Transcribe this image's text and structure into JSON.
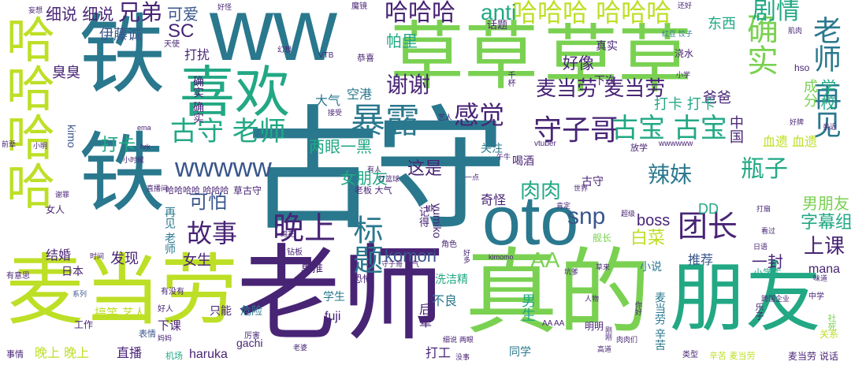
{
  "palette": {
    "dark_purple": "#482475",
    "blue": "#39568c",
    "teal": "#2a788e",
    "green": "#22a884",
    "light_green": "#7ad151",
    "yellow_green": "#bddf26",
    "pale_yellow": "#e8eb6a"
  },
  "words": {
    "gushou": "古守",
    "laoshi_big": "老师",
    "maidanglao": "麦当劳",
    "zhende": "真的",
    "pengyou": "朋友",
    "cao1": "草草",
    "cao2": "草草",
    "ww": "ww",
    "tie1": "铁",
    "tie2": "铁",
    "xihuan": "喜欢",
    "oto": "oto",
    "hahaha_v": "哈哈哈哈",
    "baolu": "暴露",
    "queshi": "确实",
    "laoshi_zaijian": "老师 再见",
    "wanshang": "晚上",
    "gushi": "故事",
    "biaoti": "标题",
    "shouzige": "守子哥",
    "gubao": "古宝 古宝",
    "gushou_laoshi": "古守 老师",
    "wwwww": "wwwww",
    "hahaha_top": "哈哈哈",
    "hahaha_2": "哈哈哈 哈哈哈",
    "anti": "anti",
    "juqing": "剧情",
    "xiexie": "谢谢",
    "ganjue": "感觉",
    "maidanglao_2": "麦当劳 麦当劳",
    "xiongdi": "兄弟",
    "keai": "可爱",
    "xishuo": "细说 细说",
    "sc": "SC",
    "yitengcheng": "伊藤诚",
    "tuanzhang": "团长",
    "lamei": "辣妹",
    "pingzi": "瓶子",
    "roulou": "肉肉",
    "snp": "snp",
    "aa": "AA",
    "kepa": "可怕",
    "dakahk": "打卡",
    "shangke": "上课",
    "zimuzu": "字幕组",
    "nanpengyou": "男朋友",
    "komori": "komori",
    "zheshi": "这是",
    "nvpengyou": "女朋友",
    "liangyanyihei": "两眼一黑",
    "boss": "boss",
    "baicai": "白菜",
    "dd": "DD",
    "xuexiao": "学校",
    "chengfen": "成分",
    "baba": "爸爸",
    "zhongguo": "中国",
    "xueyi": "血遗 血遗",
    "dongxi": "东西",
    "zhenshi": "真实",
    "xiaci": "下次",
    "haoxiang": "好像",
    "daka_daka": "打卡 打卡",
    "kaiqi": "兄弟",
    "pali": "帕里",
    "dasao": "打扰",
    "chouchou": "臭臭",
    "daqi": "大气",
    "konggang": "空港",
    "queshi_queshi": "确实 确实",
    "kimo": "kimo",
    "hahaha_small": "哈哈哈哈 哈哈哈",
    "caogushou": "草古守",
    "guaiguai": "奇怪",
    "jide": "记得",
    "yumiko": "yumiko",
    "ttk": "ttk",
    "guanzhu": "关注",
    "hejiu": "喝酒",
    "gushou_small": "古守",
    "tuijian": "推荐",
    "xiaoshuo": "小说",
    "yifeng": "一封",
    "mana": "mana",
    "jianchang": "舰长",
    "jiehun": "结婚",
    "faxian": "发现",
    "nvsheng": "女生",
    "riben": "日本",
    "zaijian_laoshi": "再见 老师",
    "danta": "单推",
    "konghuang": "恐怖",
    "xijiejing": "洗洁精",
    "buliang": "不良",
    "xuesheng": "学生",
    "nansheng": "男生",
    "houbei": "后辈",
    "maidanglao_xinku": "麦当劳 辛苦",
    "fuji": "fuji",
    "weixian": "危险",
    "zhineng": "只能",
    "gaoxiao_yiren": "搞笑 艺人",
    "xiake": "下课",
    "haruka": "haruka",
    "gachi": "gachi",
    "zhibo": "直播",
    "wanshang_wanshang": "晚上 晚上",
    "dagong": "打工",
    "tongxue": "同学",
    "mingming": "明明",
    "xiaoxuesheng": "小学生",
    "shehui": "社死",
    "guanxi": "关系",
    "maidanglao_shuohua": "麦当劳 说话",
    "leizi": "乐子",
    "huati": "话题",
    "youyisi": "有意思",
    "xilie": "系列",
    "gongzuo": "工作",
    "shiqing": "事情",
    "biaoqing": "表情",
    "jichang": "机场",
    "haoren": "好人",
    "youmeiyou": "有没有",
    "nvren": "女人",
    "tianshi": "天使",
    "moheng": "魔镜",
    "hso": "hso",
    "jirou": "肌肉",
    "jiaoshui": "浇水",
    "xiaoxue": "小学",
    "haoshu": "还好",
    "hongwang": "红豆 饺子",
    "gongxi": "恭喜",
    "vtb": "VTB",
    "huanxiang": "幻想",
    "wangxiang": "妄想",
    "haoguai": "好怪",
    "qianbei": "千杯",
    "yiren": "艺人",
    "jieshou": "接受",
    "ema": "ema",
    "hrk": "hrk",
    "xiaoxiao": "小时候",
    "jueqian": "前辈",
    "xiaoming": "小明",
    "vtuber": "vtuber",
    "fangxue": "放学",
    "wwwwww_s": "wwwwww",
    "wuzhong": "午牛",
    "youren": "有人",
    "dalanqiu": "打篮球",
    "shijie": "世界",
    "yidian": "一点",
    "kending": "肯定",
    "chaoji": "超级",
    "dayan": "打扇",
    "kanguo": "看过",
    "riyu": "日语",
    "kimomo": "kimomo",
    "qiangzhi": "钻板",
    "haoshi": "好多",
    "jiaose": "角色",
    "shoutou": "守子哥 大气",
    "kengduo": "坑爹",
    "caolai": "草来",
    "renwu": "人物",
    "nihao": "你好",
    "aa_small": "AA AA",
    "xixi": "细说 两眼",
    "lihai": "厉害",
    "leixing": "类型",
    "xinku_maidanglao": "辛苦 麦当劳",
    "gaodao": "高道",
    "gangzhuang": "刚刚",
    "roudeng": "肉肉们",
    "meishi": "没事",
    "tianzai": "甜甜",
    "laopo": "老婆",
    "mama": "妈妈",
    "wuxi": "舞蹈",
    "huazhang": "绵花",
    "zhibojian": "直播间",
    "xie": "谢罪",
    "qianlai": "亲近",
    "haozhuo": "好牌",
    "weidao": "味道",
    "kuaguo": "跨国企业",
    "zhongxue": "中学",
    "shijian": "时间",
    "kanhuo": "看火",
    "fuhai": "复活",
    "laoban_daqi": "老板 大气",
    "xiaoxianrou": "小鲜",
    "shenchuan": "神船"
  }
}
